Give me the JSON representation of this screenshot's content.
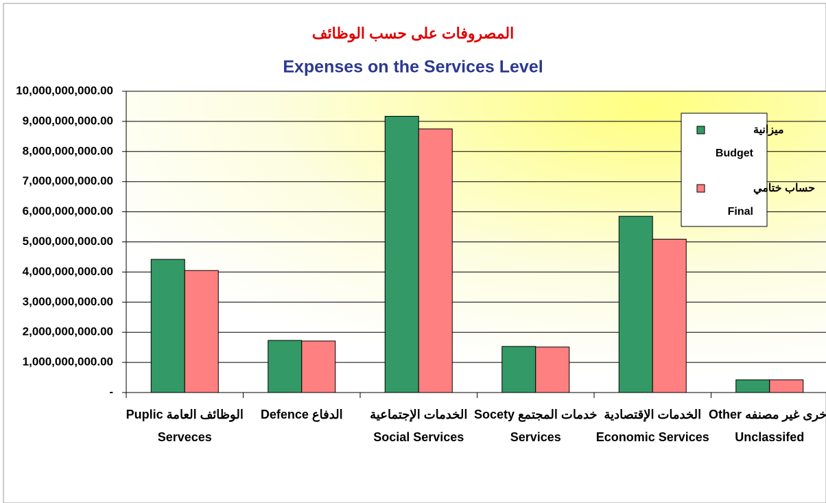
{
  "chart_data": {
    "type": "bar",
    "title": "المصروفات على حسب الوظائف",
    "subtitle": "Expenses on the Services Level",
    "categories": [
      [
        "Puplic  الوظائف العامة",
        "Serveces"
      ],
      [
        "Defence الدفاع",
        ""
      ],
      [
        "الخدمات الإجتماعية",
        "Social Services"
      ],
      [
        "Socety  خدمات المجتمع",
        "Services"
      ],
      [
        "الخدمات الإقتصادية",
        "Economic Services"
      ],
      [
        "Other  أخرى غير مصنفه",
        "Unclassifed"
      ]
    ],
    "series": [
      {
        "name": [
          "ميزانية",
          "Budget"
        ],
        "color": "#339966",
        "values": [
          4420000000,
          1730000000,
          9170000000,
          1530000000,
          5850000000,
          420000000
        ]
      },
      {
        "name": [
          "حساب ختامي",
          "Final"
        ],
        "color": "#ff8080",
        "values": [
          4050000000,
          1710000000,
          8750000000,
          1510000000,
          5090000000,
          420000000
        ]
      }
    ],
    "ylim": [
      0,
      10000000000
    ],
    "yticks": [
      {
        "value": 0,
        "label": "-"
      },
      {
        "value": 1000000000,
        "label": "1,000,000,000.00"
      },
      {
        "value": 2000000000,
        "label": "2,000,000,000.00"
      },
      {
        "value": 3000000000,
        "label": "3,000,000,000.00"
      },
      {
        "value": 4000000000,
        "label": "4,000,000,000.00"
      },
      {
        "value": 5000000000,
        "label": "5,000,000,000.00"
      },
      {
        "value": 6000000000,
        "label": "6,000,000,000.00"
      },
      {
        "value": 7000000000,
        "label": "7,000,000,000.00"
      },
      {
        "value": 8000000000,
        "label": "8,000,000,000.00"
      },
      {
        "value": 9000000000,
        "label": "9,000,000,000.00"
      },
      {
        "value": 10000000000,
        "label": "10,000,000,000.00"
      }
    ],
    "grid": true,
    "legend": "upper right"
  }
}
